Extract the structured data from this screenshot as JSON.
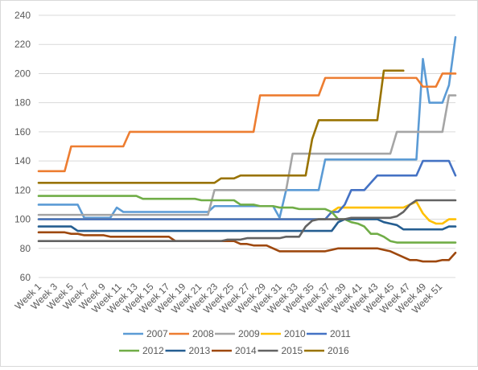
{
  "chart_data": {
    "type": "line",
    "title": "",
    "xlabel": "",
    "ylabel": "",
    "ylim": [
      60,
      240
    ],
    "y_ticks": [
      60,
      80,
      100,
      120,
      140,
      160,
      180,
      200,
      220,
      240
    ],
    "x_tick_labels": [
      "Week 1",
      "Week 3",
      "Week 5",
      "Week 7",
      "Week 9",
      "Week 11",
      "Week 13",
      "Week 15",
      "Week 17",
      "Week 19",
      "Week 21",
      "Week 23",
      "Week 25",
      "Week 27",
      "Week 29",
      "Week 31",
      "Week 33",
      "Week 35",
      "Week 37",
      "Week 39",
      "Week 41",
      "Week 43",
      "Week 45",
      "Week 47",
      "Week 49",
      "Week 51"
    ],
    "n_weeks": 53,
    "grid": true,
    "legend_position": "bottom",
    "series": [
      {
        "name": "2007",
        "color": "#5b9bd5",
        "values": [
          110,
          110,
          110,
          110,
          110,
          110,
          110,
          101,
          101,
          101,
          101,
          101,
          108,
          105,
          105,
          105,
          105,
          105,
          105,
          105,
          105,
          105,
          105,
          105,
          105,
          105,
          105,
          109,
          109,
          109,
          109,
          109,
          109,
          109,
          109,
          109,
          109,
          101,
          120,
          120,
          120,
          120,
          120,
          120,
          141,
          141,
          141,
          141,
          141,
          141,
          141,
          141,
          141,
          141,
          141,
          141,
          141,
          141,
          141,
          210,
          180,
          180,
          180,
          192,
          225
        ]
      },
      {
        "name": "2008",
        "color": "#ed7d31",
        "values": [
          133,
          133,
          133,
          133,
          133,
          150,
          150,
          150,
          150,
          150,
          150,
          150,
          150,
          150,
          160,
          160,
          160,
          160,
          160,
          160,
          160,
          160,
          160,
          160,
          160,
          160,
          160,
          160,
          160,
          160,
          160,
          160,
          160,
          160,
          185,
          185,
          185,
          185,
          185,
          185,
          185,
          185,
          185,
          185,
          197,
          197,
          197,
          197,
          197,
          197,
          197,
          197,
          197,
          197,
          197,
          197,
          197,
          197,
          197,
          191,
          191,
          191,
          200,
          200,
          200
        ]
      },
      {
        "name": "2009",
        "color": "#a5a5a5",
        "values": [
          103,
          103,
          103,
          103,
          103,
          103,
          103,
          103,
          103,
          103,
          103,
          103,
          103,
          103,
          103,
          103,
          103,
          103,
          103,
          103,
          103,
          103,
          103,
          103,
          103,
          103,
          103,
          120,
          120,
          120,
          120,
          120,
          120,
          120,
          120,
          120,
          120,
          120,
          120,
          145,
          145,
          145,
          145,
          145,
          145,
          145,
          145,
          145,
          145,
          145,
          145,
          145,
          145,
          145,
          145,
          160,
          160,
          160,
          160,
          160,
          160,
          160,
          160,
          185,
          185
        ]
      },
      {
        "name": "2010",
        "color": "#ffc000",
        "values": [
          100,
          100,
          100,
          100,
          100,
          100,
          100,
          100,
          100,
          100,
          100,
          100,
          100,
          100,
          100,
          100,
          100,
          100,
          100,
          100,
          100,
          100,
          100,
          100,
          100,
          100,
          100,
          100,
          100,
          100,
          100,
          100,
          100,
          100,
          100,
          100,
          100,
          100,
          100,
          100,
          100,
          100,
          100,
          100,
          100,
          105,
          108,
          108,
          108,
          108,
          108,
          108,
          108,
          108,
          108,
          108,
          108,
          110,
          112,
          104,
          99,
          97,
          97,
          100,
          100
        ]
      },
      {
        "name": "2011",
        "color": "#4472c4",
        "values": [
          100,
          100,
          100,
          100,
          100,
          100,
          100,
          100,
          100,
          100,
          100,
          100,
          100,
          100,
          100,
          100,
          100,
          100,
          100,
          100,
          100,
          100,
          100,
          100,
          100,
          100,
          100,
          100,
          100,
          100,
          100,
          100,
          100,
          100,
          100,
          100,
          100,
          100,
          100,
          100,
          100,
          100,
          100,
          100,
          100,
          105,
          105,
          110,
          120,
          120,
          120,
          125,
          130,
          130,
          130,
          130,
          130,
          130,
          130,
          140,
          140,
          140,
          140,
          140,
          130
        ]
      },
      {
        "name": "2012",
        "color": "#70ad47",
        "values": [
          116,
          116,
          116,
          116,
          116,
          116,
          116,
          116,
          116,
          116,
          116,
          116,
          116,
          116,
          116,
          116,
          114,
          114,
          114,
          114,
          114,
          114,
          114,
          114,
          114,
          113,
          113,
          113,
          113,
          113,
          113,
          110,
          110,
          110,
          109,
          109,
          109,
          108,
          108,
          108,
          107,
          107,
          107,
          107,
          107,
          105,
          100,
          100,
          98,
          97,
          95,
          90,
          90,
          88,
          85,
          84,
          84,
          84,
          84,
          84,
          84,
          84,
          84,
          84,
          84
        ]
      },
      {
        "name": "2013",
        "color": "#255e91",
        "values": [
          95,
          95,
          95,
          95,
          95,
          95,
          92,
          92,
          92,
          92,
          92,
          92,
          92,
          92,
          92,
          92,
          92,
          92,
          92,
          92,
          92,
          92,
          92,
          92,
          92,
          92,
          92,
          92,
          92,
          92,
          92,
          92,
          92,
          92,
          92,
          92,
          92,
          92,
          92,
          92,
          92,
          92,
          92,
          92,
          92,
          92,
          98,
          100,
          100,
          100,
          100,
          100,
          100,
          98,
          97,
          96,
          93,
          93,
          93,
          93,
          93,
          93,
          93,
          95,
          95
        ]
      },
      {
        "name": "2014",
        "color": "#9e480e",
        "values": [
          91,
          91,
          91,
          91,
          91,
          90,
          90,
          89,
          89,
          89,
          89,
          88,
          88,
          88,
          88,
          88,
          88,
          88,
          88,
          88,
          88,
          85,
          85,
          85,
          85,
          85,
          85,
          85,
          85,
          85,
          85,
          83,
          83,
          82,
          82,
          82,
          80,
          78,
          78,
          78,
          78,
          78,
          78,
          78,
          78,
          79,
          80,
          80,
          80,
          80,
          80,
          80,
          80,
          79,
          78,
          76,
          74,
          72,
          72,
          71,
          71,
          71,
          72,
          72,
          77
        ]
      },
      {
        "name": "2015",
        "color": "#636363",
        "values": [
          85,
          85,
          85,
          85,
          85,
          85,
          85,
          85,
          85,
          85,
          85,
          85,
          85,
          85,
          85,
          85,
          85,
          85,
          85,
          85,
          85,
          85,
          85,
          85,
          85,
          85,
          85,
          85,
          85,
          86,
          86,
          86,
          87,
          87,
          87,
          87,
          87,
          87,
          88,
          88,
          88,
          95,
          99,
          100,
          100,
          100,
          100,
          100,
          101,
          101,
          101,
          101,
          101,
          101,
          101,
          102,
          105,
          110,
          113,
          113,
          113,
          113,
          113,
          113,
          113
        ]
      },
      {
        "name": "2016",
        "color": "#997300",
        "values": [
          125,
          125,
          125,
          125,
          125,
          125,
          125,
          125,
          125,
          125,
          125,
          125,
          125,
          125,
          125,
          125,
          125,
          125,
          125,
          125,
          125,
          125,
          125,
          125,
          125,
          125,
          125,
          125,
          128,
          128,
          128,
          130,
          130,
          130,
          130,
          130,
          130,
          130,
          130,
          130,
          130,
          130,
          155,
          168,
          168,
          168,
          168,
          168,
          168,
          168,
          168,
          168,
          168,
          202,
          202,
          202,
          202
        ]
      }
    ]
  }
}
